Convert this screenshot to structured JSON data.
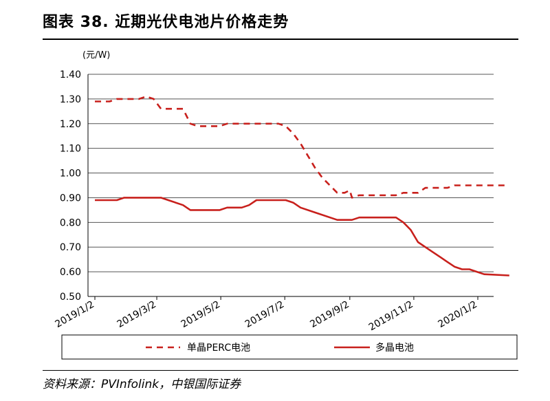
{
  "header": {
    "title": "图表 38. 近期光伏电池片价格走势"
  },
  "footer": {
    "source": "资料来源：PVInfolink，中银国际证券"
  },
  "chart_data": {
    "type": "line",
    "title": "",
    "xlabel": "",
    "ylabel": "(元/W)",
    "ylim": [
      0.5,
      1.4
    ],
    "yticks": [
      "1.40",
      "1.30",
      "1.20",
      "1.10",
      "1.00",
      "0.90",
      "0.80",
      "0.70",
      "0.60",
      "0.50"
    ],
    "x_ticks": [
      "2019/1/2",
      "2019/3/2",
      "2019/5/2",
      "2019/7/2",
      "2019/9/2",
      "2019/11/2",
      "2020/1/2"
    ],
    "grid": "horizontal",
    "legend_position": "bottom",
    "series": [
      {
        "name": "单晶PERC电池",
        "style": "dashed",
        "color": "#c8201c",
        "points": [
          [
            "2019-01-02",
            1.29
          ],
          [
            "2019-01-16",
            1.29
          ],
          [
            "2019-01-23",
            1.3
          ],
          [
            "2019-02-13",
            1.3
          ],
          [
            "2019-02-20",
            1.31
          ],
          [
            "2019-02-27",
            1.3
          ],
          [
            "2019-03-06",
            1.26
          ],
          [
            "2019-03-27",
            1.26
          ],
          [
            "2019-04-03",
            1.2
          ],
          [
            "2019-04-10",
            1.19
          ],
          [
            "2019-05-01",
            1.19
          ],
          [
            "2019-05-08",
            1.2
          ],
          [
            "2019-06-19",
            1.2
          ],
          [
            "2019-06-26",
            1.2
          ],
          [
            "2019-07-03",
            1.19
          ],
          [
            "2019-07-10",
            1.16
          ],
          [
            "2019-07-17",
            1.12
          ],
          [
            "2019-07-24",
            1.07
          ],
          [
            "2019-07-31",
            1.02
          ],
          [
            "2019-08-07",
            0.98
          ],
          [
            "2019-08-14",
            0.95
          ],
          [
            "2019-08-21",
            0.92
          ],
          [
            "2019-08-28",
            0.92
          ],
          [
            "2019-09-02",
            0.93
          ],
          [
            "2019-09-04",
            0.9
          ],
          [
            "2019-09-11",
            0.91
          ],
          [
            "2019-10-16",
            0.91
          ],
          [
            "2019-10-23",
            0.92
          ],
          [
            "2019-11-06",
            0.92
          ],
          [
            "2019-11-13",
            0.94
          ],
          [
            "2019-12-04",
            0.94
          ],
          [
            "2019-12-11",
            0.95
          ],
          [
            "2020-02-01",
            0.95
          ]
        ]
      },
      {
        "name": "多晶电池",
        "style": "solid",
        "color": "#c8201c",
        "points": [
          [
            "2019-01-02",
            0.89
          ],
          [
            "2019-01-23",
            0.89
          ],
          [
            "2019-01-30",
            0.9
          ],
          [
            "2019-03-06",
            0.9
          ],
          [
            "2019-03-13",
            0.89
          ],
          [
            "2019-03-27",
            0.87
          ],
          [
            "2019-04-03",
            0.85
          ],
          [
            "2019-04-10",
            0.85
          ],
          [
            "2019-05-01",
            0.85
          ],
          [
            "2019-05-08",
            0.86
          ],
          [
            "2019-05-22",
            0.86
          ],
          [
            "2019-05-29",
            0.87
          ],
          [
            "2019-06-05",
            0.89
          ],
          [
            "2019-06-26",
            0.89
          ],
          [
            "2019-07-03",
            0.89
          ],
          [
            "2019-07-10",
            0.88
          ],
          [
            "2019-07-17",
            0.86
          ],
          [
            "2019-07-31",
            0.84
          ],
          [
            "2019-08-21",
            0.81
          ],
          [
            "2019-08-28",
            0.81
          ],
          [
            "2019-09-04",
            0.81
          ],
          [
            "2019-09-11",
            0.82
          ],
          [
            "2019-10-09",
            0.82
          ],
          [
            "2019-10-16",
            0.82
          ],
          [
            "2019-10-23",
            0.8
          ],
          [
            "2019-10-30",
            0.77
          ],
          [
            "2019-11-06",
            0.72
          ],
          [
            "2019-11-20",
            0.68
          ],
          [
            "2019-11-27",
            0.66
          ],
          [
            "2019-12-04",
            0.64
          ],
          [
            "2019-12-11",
            0.62
          ],
          [
            "2019-12-18",
            0.61
          ],
          [
            "2019-12-25",
            0.61
          ],
          [
            "2020-01-01",
            0.6
          ],
          [
            "2020-01-08",
            0.59
          ],
          [
            "2020-02-01",
            0.585
          ]
        ]
      }
    ]
  }
}
